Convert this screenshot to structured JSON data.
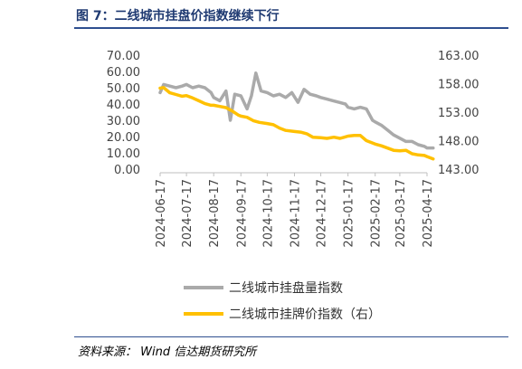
{
  "title": "图 7：二线城市挂盘价指数继续下行",
  "source": "资料来源：   Wind  信达期货研究所",
  "colors": {
    "listing_volume": "#aaaaaa",
    "listing_price": "#ffc000",
    "title": "#1f3a72",
    "rule": "#2f4f8f"
  },
  "chart_data": {
    "type": "line",
    "title": "",
    "x_ticks": [
      "2024-06-17",
      "2024-07-17",
      "2024-08-17",
      "2024-09-17",
      "2024-10-17",
      "2024-11-17",
      "2024-12-17",
      "2025-01-17",
      "2025-02-17",
      "2025-03-17",
      "2025-04-17"
    ],
    "y_left": {
      "lim": [
        0,
        70
      ],
      "ticks": [
        "0.00",
        "10.00",
        "20.00",
        "30.00",
        "40.00",
        "50.00",
        "60.00",
        "70.00"
      ]
    },
    "y_right": {
      "lim": [
        143,
        163
      ],
      "ticks": [
        "143.00",
        "148.00",
        "153.00",
        "158.00",
        "163.00"
      ]
    },
    "series": [
      {
        "name": "二线城市挂盘量指数",
        "axis": "left",
        "x": [
          "2024-06-17",
          "2024-06-21",
          "2024-06-28",
          "2024-07-05",
          "2024-07-12",
          "2024-07-17",
          "2024-07-24",
          "2024-07-31",
          "2024-08-07",
          "2024-08-14",
          "2024-08-17",
          "2024-08-24",
          "2024-08-31",
          "2024-09-05",
          "2024-09-10",
          "2024-09-17",
          "2024-09-24",
          "2024-09-29",
          "2024-10-04",
          "2024-10-10",
          "2024-10-17",
          "2024-10-24",
          "2024-10-31",
          "2024-11-07",
          "2024-11-14",
          "2024-11-21",
          "2024-11-28",
          "2024-12-05",
          "2024-12-12",
          "2024-12-17",
          "2024-12-24",
          "2024-12-31",
          "2025-01-07",
          "2025-01-14",
          "2025-01-17",
          "2025-01-24",
          "2025-01-31",
          "2025-02-07",
          "2025-02-14",
          "2025-02-17",
          "2025-02-24",
          "2025-03-03",
          "2025-03-10",
          "2025-03-17",
          "2025-03-24",
          "2025-03-31",
          "2025-04-07",
          "2025-04-14",
          "2025-04-17",
          "2025-04-24"
        ],
        "values": [
          47,
          52,
          51,
          50,
          51,
          52,
          50,
          51,
          50,
          47,
          44,
          42,
          48,
          30,
          46,
          45,
          37,
          45,
          59,
          48,
          47,
          45,
          46,
          44,
          47,
          41,
          49,
          46,
          45,
          44,
          43,
          42,
          41,
          40,
          38,
          37,
          38,
          37,
          30,
          29,
          27,
          24,
          21,
          19,
          17,
          17,
          15,
          14,
          13,
          13
        ]
      },
      {
        "name": "二线城市挂牌价指数（右）",
        "axis": "right",
        "x": [
          "2024-06-17",
          "2024-06-21",
          "2024-06-28",
          "2024-07-05",
          "2024-07-12",
          "2024-07-17",
          "2024-07-24",
          "2024-07-31",
          "2024-08-07",
          "2024-08-14",
          "2024-08-17",
          "2024-08-24",
          "2024-08-31",
          "2024-09-07",
          "2024-09-14",
          "2024-09-17",
          "2024-09-24",
          "2024-10-01",
          "2024-10-08",
          "2024-10-17",
          "2024-10-24",
          "2024-10-31",
          "2024-11-07",
          "2024-11-17",
          "2024-11-24",
          "2024-12-01",
          "2024-12-08",
          "2024-12-17",
          "2024-12-24",
          "2025-01-01",
          "2025-01-08",
          "2025-01-17",
          "2025-01-24",
          "2025-01-31",
          "2025-02-07",
          "2025-02-17",
          "2025-02-24",
          "2025-03-03",
          "2025-03-10",
          "2025-03-17",
          "2025-03-24",
          "2025-03-31",
          "2025-04-07",
          "2025-04-14",
          "2025-04-17",
          "2025-04-24"
        ],
        "values": [
          157.2,
          157.3,
          156.4,
          156.1,
          155.8,
          155.9,
          155.5,
          155.0,
          154.5,
          154.2,
          154.2,
          154.0,
          153.8,
          153.2,
          152.5,
          152.3,
          152.1,
          151.5,
          151.2,
          151.0,
          150.8,
          150.2,
          149.8,
          149.6,
          149.5,
          149.2,
          148.6,
          148.5,
          148.4,
          148.6,
          148.4,
          148.8,
          148.9,
          148.9,
          148.0,
          147.4,
          147.1,
          146.7,
          146.3,
          146.2,
          146.3,
          145.7,
          145.5,
          145.4,
          145.2,
          144.8
        ]
      }
    ],
    "legend": {
      "placement": "bottom-center",
      "entries": [
        "二线城市挂盘量指数",
        "二线城市挂牌价指数（右）"
      ]
    },
    "grid": false
  }
}
